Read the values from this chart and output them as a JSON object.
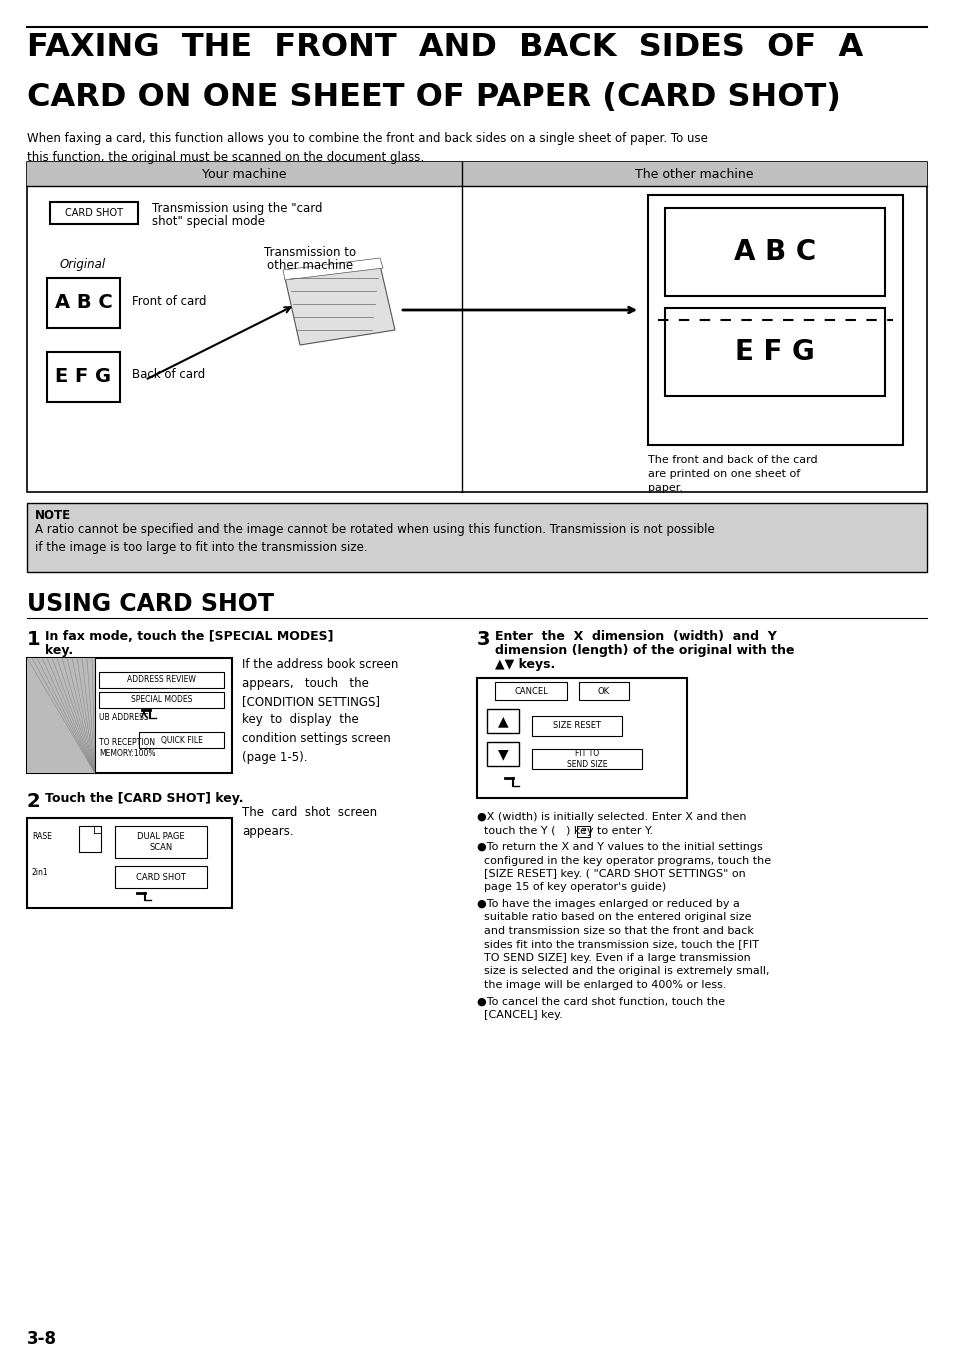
{
  "title_line1": "FAXING  THE  FRONT  AND  BACK  SIDES  OF  A",
  "title_line2": "CARD ON ONE SHEET OF PAPER (CARD SHOT)",
  "subtitle": "When faxing a card, this function allows you to combine the front and back sides on a single sheet of paper. To use\nthis function, the original must be scanned on the document glass.",
  "table_header_left": "Your machine",
  "table_header_right": "The other machine",
  "card_shot_label": "CARD SHOT",
  "transmission_text1": "Transmission using the \"card",
  "transmission_text2": "shot\" special mode",
  "transmission_to1": "Transmission to",
  "transmission_to2": "other machine",
  "original_label": "Original",
  "front_card_label": "Front of card",
  "back_card_label": "Back of card",
  "abc_text": "A B C",
  "efg_text": "E F G",
  "result_caption": "The front and back of the card\nare printed on one sheet of\npaper.",
  "note_header": "NOTE",
  "note_text": "A ratio cannot be specified and the image cannot be rotated when using this function. Transmission is not possible\nif the image is too large to fit into the transmission size.",
  "section_title": "USING CARD SHOT",
  "step1_num": "1",
  "step1_title_bold": "In fax mode, touch the [SPECIAL MODES]",
  "step1_title_bold2": "key.",
  "step1_desc": "If the address book screen\nappears,   touch   the\n[CONDITION SETTINGS]\nkey  to  display  the\ncondition settings screen\n(page 1-5).",
  "step2_num": "2",
  "step2_title": "Touch the [CARD SHOT] key.",
  "step2_desc": "The  card  shot  screen\nappears.",
  "step3_num": "3",
  "step3_title1": "Enter  the  X  dimension  (width)  and  Y",
  "step3_title2": "dimension (length) of the original with the",
  "step3_title3": "▲▼ keys.",
  "b1_line1": "●X (width) is initially selected. Enter X and then",
  "b1_line2": "  touch the Y (   ) key to enter Y.",
  "b2_line1": "●To return the X and Y values to the initial settings",
  "b2_line2": "  configured in the key operator programs, touch the",
  "b2_line3": "  [SIZE RESET] key. ( \"CARD SHOT SETTINGS\" on",
  "b2_line4": "  page 15 of key operator's guide)",
  "b3_line1": "●To have the images enlarged or reduced by a",
  "b3_line2": "  suitable ratio based on the entered original size",
  "b3_line3": "  and transmission size so that the front and back",
  "b3_line4": "  sides fit into the transmission size, touch the [FIT",
  "b3_line5": "  TO SEND SIZE] key. Even if a large transmission",
  "b3_line6": "  size is selected and the original is extremely small,",
  "b3_line7": "  the image will be enlarged to 400% or less.",
  "b4_line1": "●To cancel the card shot function, touch the",
  "b4_line2": "  [CANCEL] key.",
  "page_num": "3-8",
  "bg_color": "#ffffff",
  "note_bg": "#d0d0d0",
  "table_header_bg": "#c0c0c0"
}
